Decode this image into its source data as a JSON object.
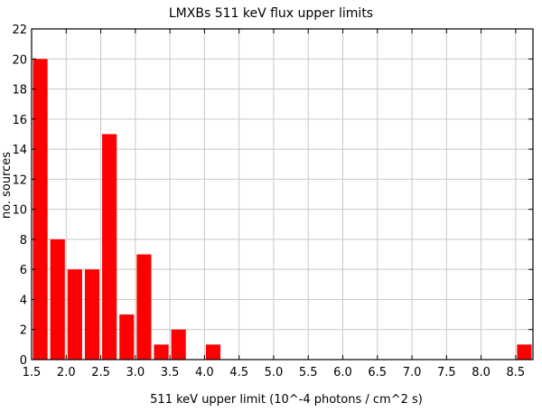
{
  "chart_data": {
    "type": "bar",
    "title": "LMXBs 511 keV flux upper limits",
    "xlabel": "511 keV upper limit (10^-4 photons / cm^2 s)",
    "ylabel": "no. sources",
    "xlim": [
      1.5,
      8.75
    ],
    "ylim": [
      0,
      22
    ],
    "xticks": [
      "1.5",
      "2.0",
      "2.5",
      "3.0",
      "3.5",
      "4.0",
      "4.5",
      "5.0",
      "5.5",
      "6.0",
      "6.5",
      "7.0",
      "7.5",
      "8.0",
      "8.5"
    ],
    "yticks": [
      "0",
      "2",
      "4",
      "6",
      "8",
      "10",
      "12",
      "14",
      "16",
      "18",
      "20",
      "22"
    ],
    "grid": true,
    "bar_color": "#ff0000",
    "bins": [
      {
        "x": 1.625,
        "value": 20
      },
      {
        "x": 1.875,
        "value": 8
      },
      {
        "x": 2.125,
        "value": 6
      },
      {
        "x": 2.375,
        "value": 6
      },
      {
        "x": 2.625,
        "value": 15
      },
      {
        "x": 2.875,
        "value": 3
      },
      {
        "x": 3.125,
        "value": 7
      },
      {
        "x": 3.375,
        "value": 1
      },
      {
        "x": 3.625,
        "value": 2
      },
      {
        "x": 4.125,
        "value": 1
      },
      {
        "x": 8.625,
        "value": 1
      }
    ],
    "bin_width": 0.25
  }
}
